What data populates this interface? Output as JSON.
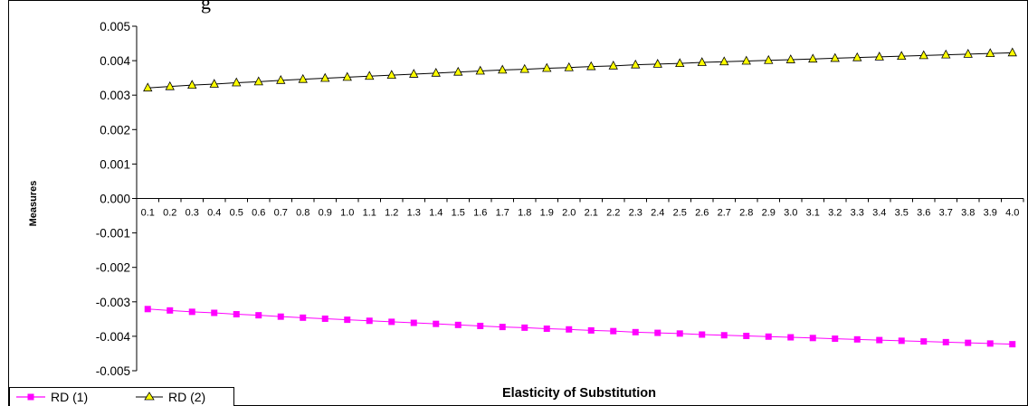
{
  "page_title_fragment": "g",
  "chart_data": {
    "type": "line",
    "xlabel": "Elasticity of Substitution",
    "ylabel": "Measures",
    "ylim": [
      -0.005,
      0.005
    ],
    "yticks": [
      "0.005",
      "0.004",
      "0.003",
      "0.002",
      "0.001",
      "0.000",
      "-0.001",
      "-0.002",
      "-0.003",
      "-0.004",
      "-0.005"
    ],
    "ytick_values": [
      0.005,
      0.004,
      0.003,
      0.002,
      0.001,
      0.0,
      -0.001,
      -0.002,
      -0.003,
      -0.004,
      -0.005
    ],
    "categories": [
      "0.1",
      "0.2",
      "0.3",
      "0.4",
      "0.5",
      "0.6",
      "0.7",
      "0.8",
      "0.9",
      "1.0",
      "1.1",
      "1.2",
      "1.3",
      "1.4",
      "1.5",
      "1.6",
      "1.7",
      "1.8",
      "1.9",
      "2.0",
      "2.1",
      "2.2",
      "2.3",
      "2.4",
      "2.5",
      "2.6",
      "2.7",
      "2.8",
      "2.9",
      "3.0",
      "3.1",
      "3.2",
      "3.3",
      "3.4",
      "3.5",
      "3.6",
      "3.7",
      "3.8",
      "3.9",
      "4.0"
    ],
    "series": [
      {
        "name": "RD (1)",
        "color": "#ff00ff",
        "marker": "square",
        "values": [
          -0.00321,
          -0.00325,
          -0.00329,
          -0.00332,
          -0.00336,
          -0.00339,
          -0.00343,
          -0.00346,
          -0.00349,
          -0.00352,
          -0.00355,
          -0.00358,
          -0.00361,
          -0.00364,
          -0.00367,
          -0.0037,
          -0.00373,
          -0.00375,
          -0.00378,
          -0.0038,
          -0.00383,
          -0.00385,
          -0.00388,
          -0.0039,
          -0.00392,
          -0.00395,
          -0.00397,
          -0.00399,
          -0.00401,
          -0.00403,
          -0.00405,
          -0.00407,
          -0.00409,
          -0.00411,
          -0.00413,
          -0.00415,
          -0.00417,
          -0.00419,
          -0.00421,
          -0.00423
        ]
      },
      {
        "name": "RD (2)",
        "color": "#ffff00",
        "marker": "triangle",
        "values": [
          0.00321,
          0.00325,
          0.00329,
          0.00332,
          0.00336,
          0.00339,
          0.00343,
          0.00346,
          0.00349,
          0.00352,
          0.00355,
          0.00358,
          0.00361,
          0.00364,
          0.00367,
          0.0037,
          0.00373,
          0.00375,
          0.00378,
          0.0038,
          0.00383,
          0.00385,
          0.00388,
          0.0039,
          0.00392,
          0.00395,
          0.00397,
          0.00399,
          0.00401,
          0.00403,
          0.00405,
          0.00407,
          0.00409,
          0.00411,
          0.00413,
          0.00415,
          0.00417,
          0.00419,
          0.00421,
          0.00423
        ]
      }
    ],
    "legend_placement": "bottom-left",
    "grid": false
  }
}
